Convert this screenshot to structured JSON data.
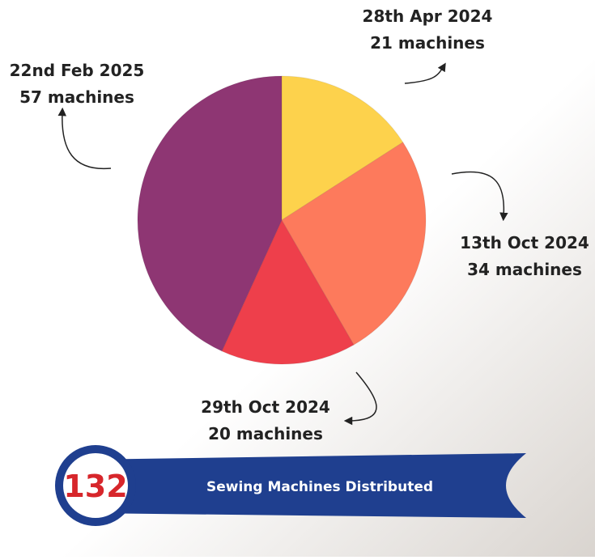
{
  "chart_data": {
    "type": "pie",
    "categories": [
      "28th Apr 2024",
      "13th Oct 2024",
      "29th Oct 2024",
      "22nd Feb 2025"
    ],
    "values": [
      21,
      34,
      20,
      57
    ],
    "value_labels": [
      "21 machines",
      "34 machines",
      "20 machines",
      "57 machines"
    ],
    "colors": [
      "#fdd24c",
      "#fd7a5c",
      "#ee3f4b",
      "#8e3673"
    ]
  },
  "banner": {
    "total": 132,
    "text": "Sewing Machines Distributed"
  }
}
